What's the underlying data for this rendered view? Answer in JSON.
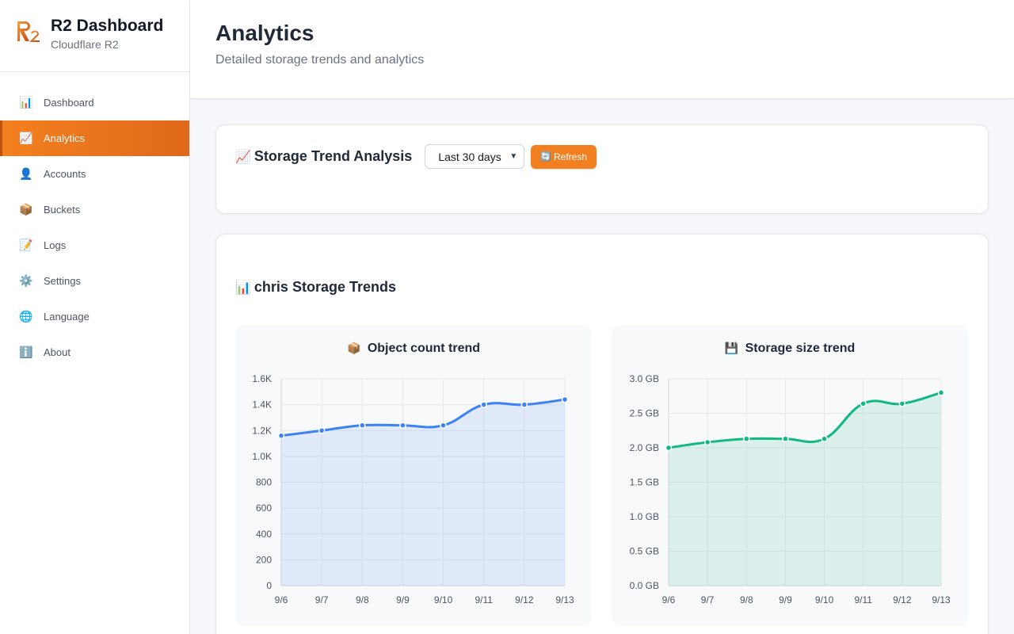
{
  "brand": {
    "title": "R2 Dashboard",
    "subtitle": "Cloudflare R2",
    "logo": "r2-logo"
  },
  "sidebar": {
    "items": [
      {
        "label": "Dashboard",
        "icon": "bar-chart-icon",
        "glyph": "📊",
        "active": false
      },
      {
        "label": "Analytics",
        "icon": "chart-up-icon",
        "glyph": "📈",
        "active": true
      },
      {
        "label": "Accounts",
        "icon": "user-icon",
        "glyph": "👤",
        "active": false
      },
      {
        "label": "Buckets",
        "icon": "box-icon",
        "glyph": "📦",
        "active": false
      },
      {
        "label": "Logs",
        "icon": "memo-icon",
        "glyph": "📝",
        "active": false
      },
      {
        "label": "Settings",
        "icon": "gear-icon",
        "glyph": "⚙️",
        "active": false
      },
      {
        "label": "Language",
        "icon": "globe-icon",
        "glyph": "🌐",
        "active": false
      },
      {
        "label": "About",
        "icon": "info-icon",
        "glyph": "ℹ️",
        "active": false
      }
    ]
  },
  "header": {
    "title": "Analytics",
    "subtitle": "Detailed storage trends and analytics"
  },
  "trend": {
    "title_glyph": "📈",
    "title": "Storage Trend Analysis",
    "range_value": "Last 30 days",
    "refresh_glyph": "🔄",
    "refresh_label": "Refresh"
  },
  "charts_section": {
    "title_glyph": "📊",
    "title": "chris Storage Trends"
  },
  "colors": {
    "accent": "#f38020",
    "blue": "#3b82f6",
    "green": "#10b981"
  },
  "chart_data": [
    {
      "type": "area",
      "title_glyph": "📦",
      "title": "Object count trend",
      "categories": [
        "9/6",
        "9/7",
        "9/8",
        "9/9",
        "9/10",
        "9/11",
        "9/12",
        "9/13"
      ],
      "values": [
        1160,
        1200,
        1240,
        1240,
        1240,
        1400,
        1400,
        1440
      ],
      "ylim": [
        0,
        1600
      ],
      "yticks": [
        0,
        200,
        400,
        600,
        800,
        1000,
        1200,
        1400,
        1600
      ],
      "ytick_labels": [
        "0",
        "200",
        "400",
        "600",
        "800",
        "1.0K",
        "1.2K",
        "1.4K",
        "1.6K"
      ],
      "color": "#3b82f6",
      "fill": "rgba(59,130,246,0.12)",
      "grid": true
    },
    {
      "type": "area",
      "title_glyph": "💾",
      "title": "Storage size trend",
      "categories": [
        "9/6",
        "9/7",
        "9/8",
        "9/9",
        "9/10",
        "9/11",
        "9/12",
        "9/13"
      ],
      "values": [
        2.0,
        2.08,
        2.13,
        2.13,
        2.13,
        2.64,
        2.64,
        2.8
      ],
      "ylim": [
        0,
        3.0
      ],
      "yticks": [
        0,
        0.5,
        1.0,
        1.5,
        2.0,
        2.5,
        3.0
      ],
      "ytick_labels": [
        "0.0 GB",
        "0.5 GB",
        "1.0 GB",
        "1.5 GB",
        "2.0 GB",
        "2.5 GB",
        "3.0 GB"
      ],
      "color": "#10b981",
      "fill": "rgba(16,185,129,0.12)",
      "grid": true
    }
  ]
}
